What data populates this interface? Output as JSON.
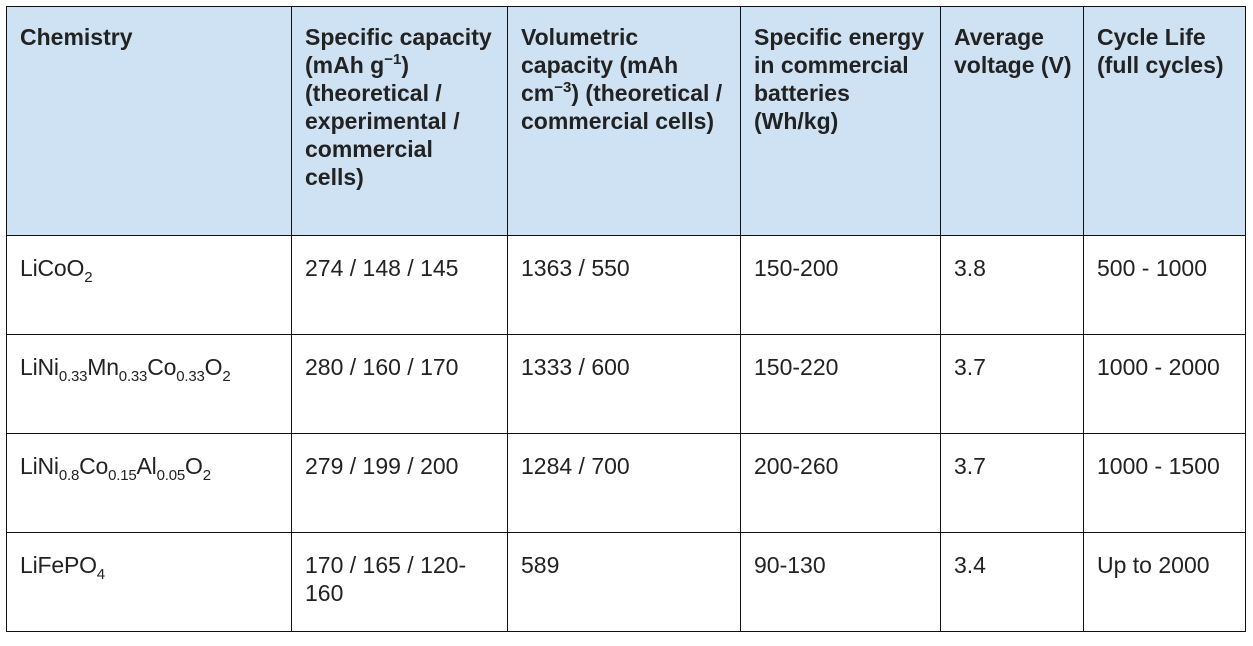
{
  "headers": {
    "chemistry": "Chemistry",
    "specific_capacity": {
      "pre": "Specific capacity (mAh g",
      "sup": "−1",
      "post": ") (theoretical / experimental / commercial cells)"
    },
    "volumetric_capacity": {
      "pre": "Volumetric capacity (mAh cm",
      "sup": "−3",
      "post": ") (theoretical / commercial cells)"
    },
    "specific_energy": "Specific energy in commercial batteries (Wh/kg)",
    "average_voltage": "Average voltage (V)",
    "cycle_life": "Cycle Life (full cycles)"
  },
  "rows": [
    {
      "chemistry": {
        "parts": [
          "LiCoO",
          "2"
        ]
      },
      "specific_capacity": "274 / 148 / 145",
      "volumetric_capacity": "1363 / 550",
      "specific_energy": "150-200",
      "average_voltage": "3.8",
      "cycle_life": "500 - 1000"
    },
    {
      "chemistry": {
        "parts": [
          "LiNi",
          "0.33",
          "Mn",
          "0.33",
          "Co",
          "0.33",
          "O",
          "2"
        ]
      },
      "specific_capacity": "280 / 160 / 170",
      "volumetric_capacity": "1333 / 600",
      "specific_energy": "150-220",
      "average_voltage": "3.7",
      "cycle_life": "1000 - 2000"
    },
    {
      "chemistry": {
        "parts": [
          "LiNi",
          "0.8",
          "Co",
          "0.15",
          "Al",
          "0.05",
          "O",
          "2"
        ]
      },
      "specific_capacity": "279 / 199 / 200",
      "volumetric_capacity": "1284 / 700",
      "specific_energy": "200-260",
      "average_voltage": "3.7",
      "cycle_life": "1000 - 1500"
    },
    {
      "chemistry": {
        "parts": [
          "LiFePO",
          "4"
        ]
      },
      "specific_capacity": "170 / 165 / 120-160",
      "volumetric_capacity": "589",
      "specific_energy": "90-130",
      "average_voltage": "3.4",
      "cycle_life": "Up to 2000"
    }
  ],
  "colors": {
    "header_background": "#cfe2f3",
    "border": "#111111",
    "text": "#222222"
  }
}
